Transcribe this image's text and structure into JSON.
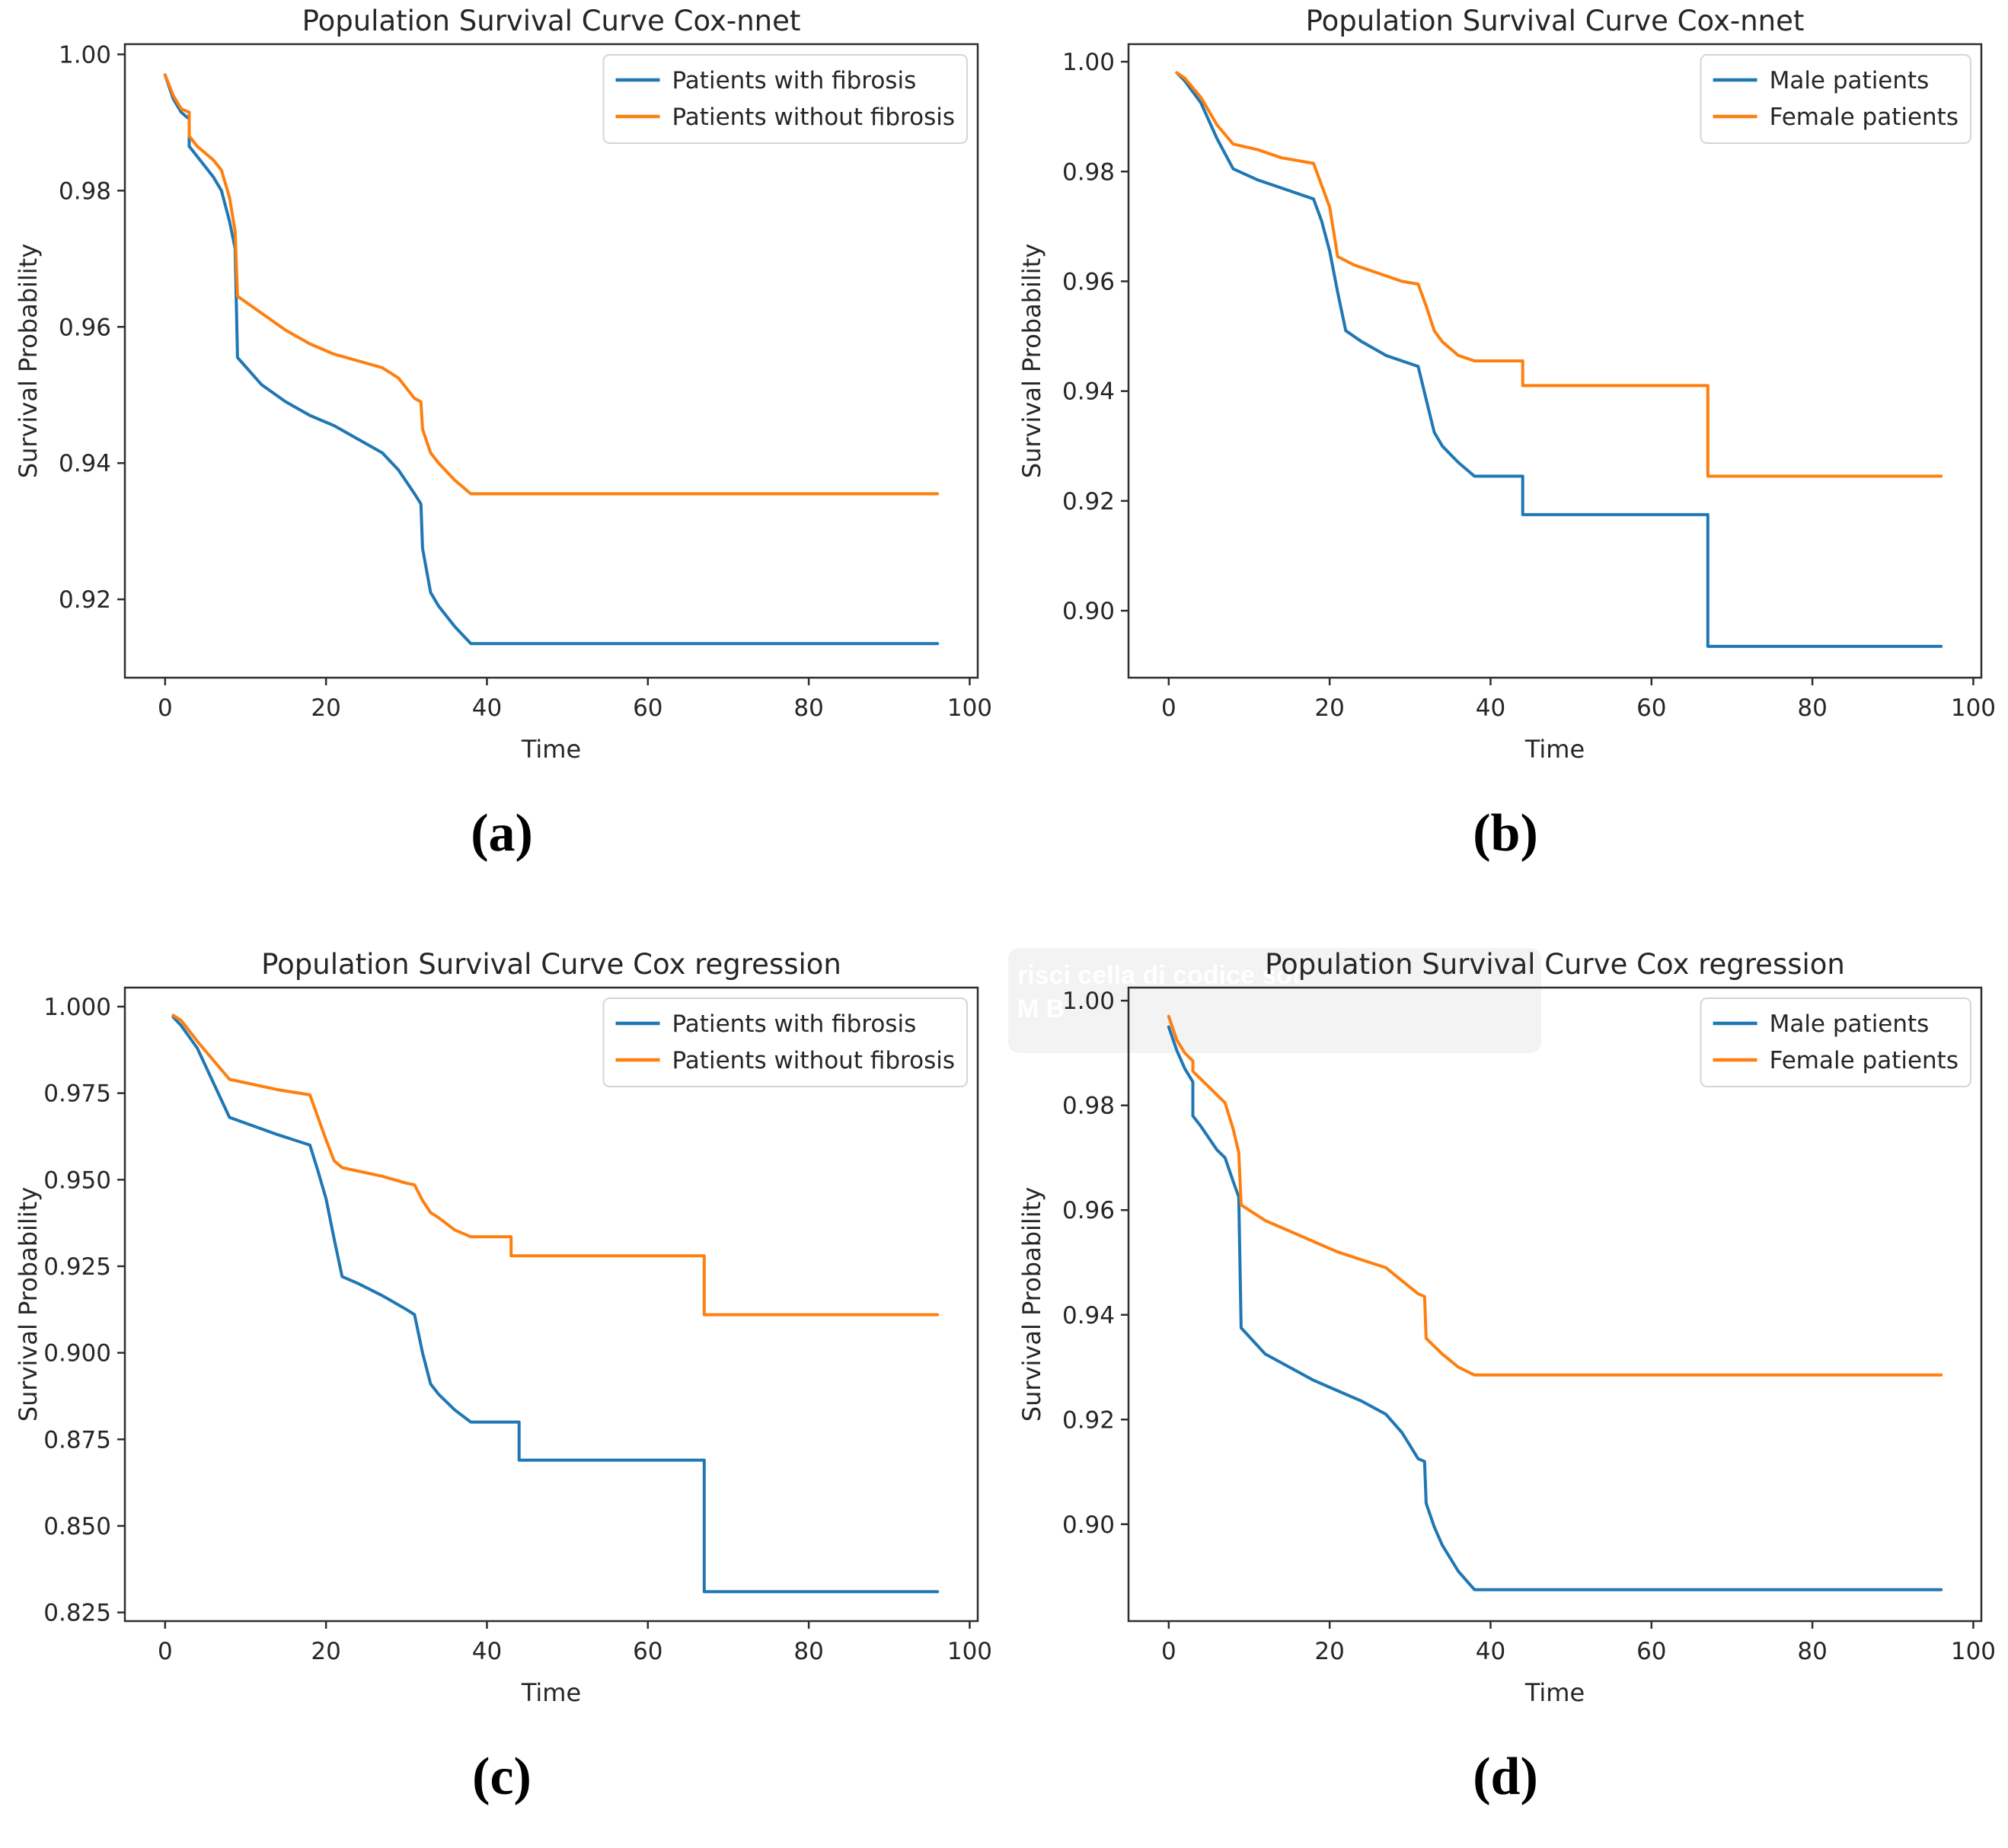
{
  "page": {
    "background": "#ffffff"
  },
  "theme": {
    "line_blue": "#1f77b4",
    "line_orange": "#ff7f0e",
    "spine_color": "#2e2e2e",
    "text_color": "#262626",
    "legend_border": "#d5d5d5",
    "legend_bg": "#ffffff"
  },
  "panels": [
    {
      "caption": "(a)"
    },
    {
      "caption": "(b)"
    },
    {
      "caption": "(c)"
    },
    {
      "caption": "(d)"
    }
  ],
  "artifact": {
    "line1": "risci cella di codice sot",
    "line2": "M B"
  },
  "chart_data": [
    {
      "type": "line",
      "title": "Population Survival Curve Cox-nnet",
      "xlabel": "Time",
      "ylabel": "Survival Probability",
      "xlim": [
        -5,
        101
      ],
      "ylim": [
        0.9085,
        1.0015
      ],
      "xticks": [
        0,
        20,
        40,
        60,
        80,
        100
      ],
      "xtick_labels": [
        "0",
        "20",
        "40",
        "60",
        "80",
        "100"
      ],
      "yticks": [
        0.92,
        0.94,
        0.96,
        0.98,
        1.0
      ],
      "ytick_labels": [
        "0.92",
        "0.94",
        "0.96",
        "0.98",
        "1.00"
      ],
      "grid": false,
      "legend_position": "upper right",
      "series": [
        {
          "name": "Patients with fibrosis",
          "color": "#1f77b4",
          "points": [
            [
              0,
              0.997
            ],
            [
              1,
              0.9935
            ],
            [
              2,
              0.9915
            ],
            [
              3,
              0.9905
            ],
            [
              3,
              0.9865
            ],
            [
              4,
              0.985
            ],
            [
              6,
              0.982
            ],
            [
              7,
              0.98
            ],
            [
              8,
              0.9755
            ],
            [
              8.7,
              0.9715
            ],
            [
              9,
              0.9555
            ],
            [
              12,
              0.9515
            ],
            [
              15,
              0.949
            ],
            [
              18,
              0.947
            ],
            [
              21,
              0.9455
            ],
            [
              24,
              0.9435
            ],
            [
              27,
              0.9415
            ],
            [
              29,
              0.939
            ],
            [
              31,
              0.9355
            ],
            [
              31.8,
              0.934
            ],
            [
              32,
              0.9275
            ],
            [
              33,
              0.921
            ],
            [
              34,
              0.919
            ],
            [
              36,
              0.916
            ],
            [
              38,
              0.9135
            ],
            [
              96,
              0.9135
            ]
          ]
        },
        {
          "name": "Patients without fibrosis",
          "color": "#ff7f0e",
          "points": [
            [
              0,
              0.997
            ],
            [
              1,
              0.994
            ],
            [
              2,
              0.992
            ],
            [
              3,
              0.9915
            ],
            [
              3,
              0.988
            ],
            [
              4,
              0.9865
            ],
            [
              6,
              0.9845
            ],
            [
              7,
              0.983
            ],
            [
              8,
              0.979
            ],
            [
              8.7,
              0.974
            ],
            [
              9,
              0.9645
            ],
            [
              12,
              0.962
            ],
            [
              15,
              0.9595
            ],
            [
              18,
              0.9575
            ],
            [
              21,
              0.956
            ],
            [
              24,
              0.955
            ],
            [
              27,
              0.954
            ],
            [
              29,
              0.9525
            ],
            [
              31,
              0.9495
            ],
            [
              31.8,
              0.949
            ],
            [
              32,
              0.945
            ],
            [
              33,
              0.9415
            ],
            [
              34,
              0.94
            ],
            [
              36,
              0.9375
            ],
            [
              38,
              0.9355
            ],
            [
              96,
              0.9355
            ]
          ]
        }
      ]
    },
    {
      "type": "line",
      "title": "Population Survival Curve Cox-nnet",
      "xlabel": "Time",
      "ylabel": "Survival Probability",
      "xlim": [
        -5,
        101
      ],
      "ylim": [
        0.8878,
        1.0032
      ],
      "xticks": [
        0,
        20,
        40,
        60,
        80,
        100
      ],
      "xtick_labels": [
        "0",
        "20",
        "40",
        "60",
        "80",
        "100"
      ],
      "yticks": [
        0.9,
        0.92,
        0.94,
        0.96,
        0.98,
        1.0
      ],
      "ytick_labels": [
        "0.90",
        "0.92",
        "0.94",
        "0.96",
        "0.98",
        "1.00"
      ],
      "grid": false,
      "legend_position": "upper right",
      "series": [
        {
          "name": "Male patients",
          "color": "#1f77b4",
          "points": [
            [
              1,
              0.998
            ],
            [
              2,
              0.9965
            ],
            [
              4,
              0.9925
            ],
            [
              6,
              0.986
            ],
            [
              8,
              0.9805
            ],
            [
              11,
              0.9785
            ],
            [
              14,
              0.977
            ],
            [
              18,
              0.975
            ],
            [
              19,
              0.971
            ],
            [
              20,
              0.9655
            ],
            [
              21,
              0.958
            ],
            [
              22,
              0.951
            ],
            [
              24,
              0.949
            ],
            [
              27,
              0.9465
            ],
            [
              30,
              0.945
            ],
            [
              31,
              0.9445
            ],
            [
              32,
              0.9385
            ],
            [
              33,
              0.9325
            ],
            [
              34,
              0.93
            ],
            [
              36,
              0.927
            ],
            [
              38,
              0.9245
            ],
            [
              44,
              0.9245
            ],
            [
              44,
              0.9175
            ],
            [
              67,
              0.9175
            ],
            [
              67,
              0.8935
            ],
            [
              96,
              0.8935
            ]
          ]
        },
        {
          "name": "Female patients",
          "color": "#ff7f0e",
          "points": [
            [
              1,
              0.998
            ],
            [
              2,
              0.997
            ],
            [
              4,
              0.9935
            ],
            [
              6,
              0.9885
            ],
            [
              8,
              0.985
            ],
            [
              11,
              0.984
            ],
            [
              14,
              0.9825
            ],
            [
              18,
              0.9815
            ],
            [
              19,
              0.9775
            ],
            [
              20,
              0.9735
            ],
            [
              21,
              0.9645
            ],
            [
              23,
              0.963
            ],
            [
              26,
              0.9615
            ],
            [
              29,
              0.96
            ],
            [
              31,
              0.9595
            ],
            [
              32,
              0.9555
            ],
            [
              33,
              0.951
            ],
            [
              34,
              0.949
            ],
            [
              36,
              0.9465
            ],
            [
              38,
              0.9455
            ],
            [
              44,
              0.9455
            ],
            [
              44,
              0.941
            ],
            [
              67,
              0.941
            ],
            [
              67,
              0.9245
            ],
            [
              96,
              0.9245
            ]
          ]
        }
      ]
    },
    {
      "type": "line",
      "title": "Population Survival Curve Cox regression",
      "xlabel": "Time",
      "ylabel": "Survival Probability",
      "xlim": [
        -5,
        101
      ],
      "ylim": [
        0.8225,
        1.0055
      ],
      "xticks": [
        0,
        20,
        40,
        60,
        80,
        100
      ],
      "xtick_labels": [
        "0",
        "20",
        "40",
        "60",
        "80",
        "100"
      ],
      "yticks": [
        0.825,
        0.85,
        0.875,
        0.9,
        0.925,
        0.95,
        0.975,
        1.0
      ],
      "ytick_labels": [
        "0.825",
        "0.850",
        "0.875",
        "0.900",
        "0.925",
        "0.950",
        "0.975",
        "1.000"
      ],
      "grid": false,
      "legend_position": "upper right",
      "series": [
        {
          "name": "Patients with fibrosis",
          "color": "#1f77b4",
          "points": [
            [
              1,
              0.997
            ],
            [
              2,
              0.9945
            ],
            [
              4,
              0.988
            ],
            [
              6,
              0.978
            ],
            [
              8,
              0.968
            ],
            [
              11,
              0.9655
            ],
            [
              14,
              0.963
            ],
            [
              18,
              0.96
            ],
            [
              19,
              0.9525
            ],
            [
              20,
              0.9445
            ],
            [
              21,
              0.933
            ],
            [
              22,
              0.922
            ],
            [
              24,
              0.92
            ],
            [
              27,
              0.9165
            ],
            [
              30,
              0.9125
            ],
            [
              31,
              0.911
            ],
            [
              32,
              0.9
            ],
            [
              33,
              0.891
            ],
            [
              34,
              0.888
            ],
            [
              36,
              0.8835
            ],
            [
              38,
              0.88
            ],
            [
              44,
              0.88
            ],
            [
              44,
              0.869
            ],
            [
              67,
              0.869
            ],
            [
              67,
              0.831
            ],
            [
              96,
              0.831
            ]
          ]
        },
        {
          "name": "Patients without fibrosis",
          "color": "#ff7f0e",
          "points": [
            [
              1,
              0.9975
            ],
            [
              2,
              0.996
            ],
            [
              4,
              0.99
            ],
            [
              6,
              0.9845
            ],
            [
              8,
              0.979
            ],
            [
              11,
              0.9775
            ],
            [
              14,
              0.976
            ],
            [
              18,
              0.9745
            ],
            [
              19,
              0.968
            ],
            [
              20,
              0.9615
            ],
            [
              21,
              0.9555
            ],
            [
              22,
              0.9535
            ],
            [
              24,
              0.9525
            ],
            [
              27,
              0.951
            ],
            [
              30,
              0.949
            ],
            [
              31,
              0.9485
            ],
            [
              32,
              0.944
            ],
            [
              33,
              0.9405
            ],
            [
              34,
              0.939
            ],
            [
              36,
              0.9355
            ],
            [
              38,
              0.9335
            ],
            [
              43,
              0.9335
            ],
            [
              43,
              0.928
            ],
            [
              67,
              0.928
            ],
            [
              67,
              0.911
            ],
            [
              96,
              0.911
            ]
          ]
        }
      ]
    },
    {
      "type": "line",
      "title": "Population Survival Curve Cox regression",
      "xlabel": "Time",
      "ylabel": "Survival Probability",
      "xlim": [
        -5,
        101
      ],
      "ylim": [
        0.8815,
        1.0025
      ],
      "xticks": [
        0,
        20,
        40,
        60,
        80,
        100
      ],
      "xtick_labels": [
        "0",
        "20",
        "40",
        "60",
        "80",
        "100"
      ],
      "yticks": [
        0.9,
        0.92,
        0.94,
        0.96,
        0.98,
        1.0
      ],
      "ytick_labels": [
        "0.90",
        "0.92",
        "0.94",
        "0.96",
        "0.98",
        "1.00"
      ],
      "grid": false,
      "legend_position": "upper right",
      "series": [
        {
          "name": "Male patients",
          "color": "#1f77b4",
          "points": [
            [
              0,
              0.995
            ],
            [
              1,
              0.9905
            ],
            [
              2,
              0.987
            ],
            [
              3,
              0.9845
            ],
            [
              3,
              0.978
            ],
            [
              4,
              0.976
            ],
            [
              6,
              0.9715
            ],
            [
              7,
              0.97
            ],
            [
              8,
              0.9655
            ],
            [
              8.7,
              0.9625
            ],
            [
              9,
              0.9375
            ],
            [
              12,
              0.9325
            ],
            [
              15,
              0.93
            ],
            [
              18,
              0.9275
            ],
            [
              21,
              0.9255
            ],
            [
              24,
              0.9235
            ],
            [
              27,
              0.921
            ],
            [
              29,
              0.9175
            ],
            [
              31,
              0.9125
            ],
            [
              31.8,
              0.912
            ],
            [
              32,
              0.904
            ],
            [
              33,
              0.8995
            ],
            [
              34,
              0.896
            ],
            [
              36,
              0.891
            ],
            [
              38,
              0.8875
            ],
            [
              96,
              0.8875
            ]
          ]
        },
        {
          "name": "Female patients",
          "color": "#ff7f0e",
          "points": [
            [
              0,
              0.997
            ],
            [
              1,
              0.9925
            ],
            [
              2,
              0.99
            ],
            [
              3,
              0.9885
            ],
            [
              3,
              0.9865
            ],
            [
              4,
              0.985
            ],
            [
              6,
              0.982
            ],
            [
              7,
              0.9805
            ],
            [
              8,
              0.9755
            ],
            [
              8.7,
              0.971
            ],
            [
              9,
              0.961
            ],
            [
              12,
              0.958
            ],
            [
              15,
              0.956
            ],
            [
              18,
              0.954
            ],
            [
              21,
              0.952
            ],
            [
              24,
              0.9505
            ],
            [
              27,
              0.949
            ],
            [
              29,
              0.9465
            ],
            [
              31,
              0.944
            ],
            [
              31.8,
              0.9435
            ],
            [
              32,
              0.9355
            ],
            [
              33,
              0.934
            ],
            [
              34,
              0.9325
            ],
            [
              36,
              0.93
            ],
            [
              38,
              0.9285
            ],
            [
              96,
              0.9285
            ]
          ]
        }
      ]
    }
  ]
}
